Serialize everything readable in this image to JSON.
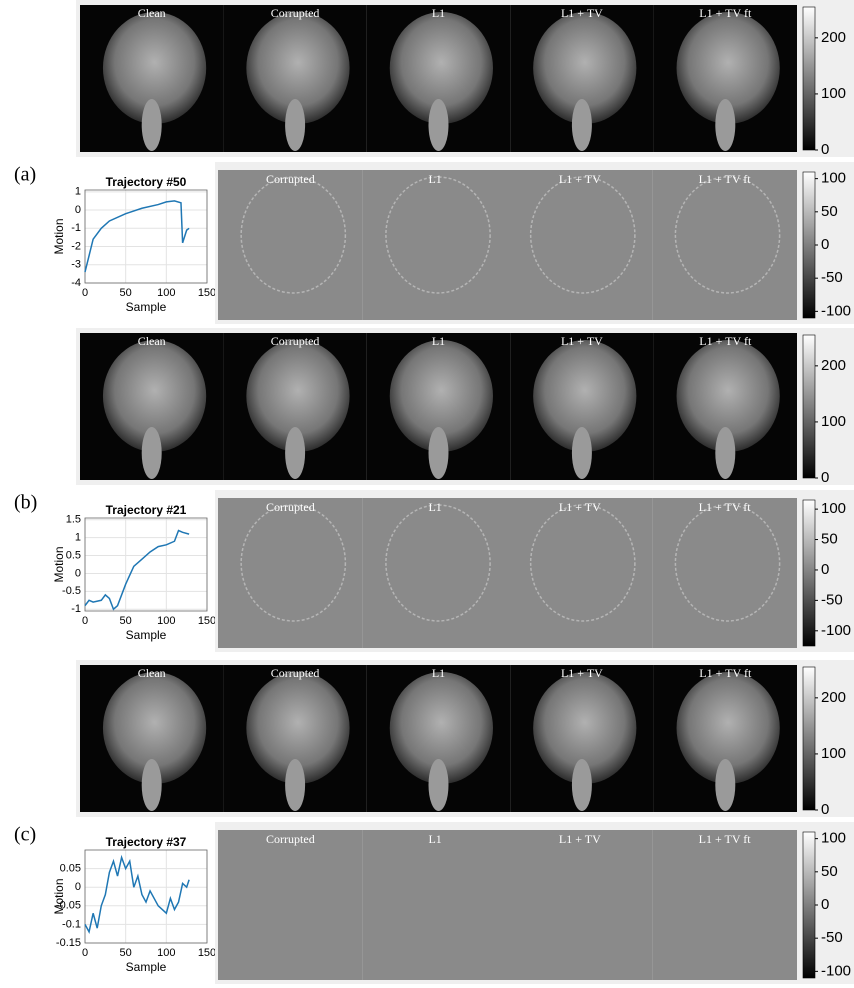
{
  "panels": [
    {
      "label": "(a)",
      "recon": {
        "labels": [
          "Clean",
          "Corrupted",
          "L1",
          "L1 + TV",
          "L1 + TV ft"
        ],
        "colorbar": {
          "lim": [
            0,
            255
          ],
          "ticks": [
            0,
            100,
            200
          ]
        }
      },
      "trajectory": {
        "type": "line",
        "title": "Trajectory #50",
        "x_label": "Sample",
        "y_label": "Motion",
        "color": "#1f77b4",
        "x": [
          0,
          5,
          10,
          20,
          30,
          50,
          70,
          90,
          100,
          110,
          118,
          120,
          125,
          128
        ],
        "values": [
          -3.4,
          -2.5,
          -1.6,
          -1.0,
          -0.6,
          -0.2,
          0.1,
          0.3,
          0.45,
          0.5,
          0.4,
          -1.8,
          -1.1,
          -1.0
        ],
        "xlim": [
          0,
          150
        ],
        "xticks": [
          0,
          50,
          100,
          150
        ],
        "ylim": [
          -4,
          1.1
        ],
        "yticks": [
          -4,
          -3,
          -2,
          -1,
          0,
          1
        ]
      },
      "diff": {
        "labels": [
          "Corrupted",
          "L1",
          "L1 + TV",
          "L1 + TV ft"
        ],
        "colorbar": {
          "lim": [
            -110,
            110
          ],
          "ticks": [
            -100,
            -50,
            0,
            50,
            100
          ]
        }
      }
    },
    {
      "label": "(b)",
      "recon": {
        "labels": [
          "Clean",
          "Corrupted",
          "L1",
          "L1 + TV",
          "L1 + TV ft"
        ],
        "colorbar": {
          "lim": [
            0,
            255
          ],
          "ticks": [
            0,
            100,
            200
          ]
        }
      },
      "trajectory": {
        "type": "line",
        "title": "Trajectory #21",
        "x_label": "Sample",
        "y_label": "Motion",
        "color": "#1f77b4",
        "x": [
          0,
          5,
          10,
          20,
          25,
          30,
          35,
          40,
          50,
          60,
          70,
          80,
          90,
          100,
          110,
          115,
          120,
          128
        ],
        "values": [
          -0.9,
          -0.75,
          -0.8,
          -0.75,
          -0.6,
          -0.7,
          -1.0,
          -0.9,
          -0.3,
          0.2,
          0.4,
          0.6,
          0.75,
          0.8,
          0.9,
          1.2,
          1.15,
          1.1
        ],
        "xlim": [
          0,
          150
        ],
        "xticks": [
          0,
          50,
          100,
          150
        ],
        "ylim": [
          -1.05,
          1.55
        ],
        "yticks": [
          -1,
          -0.5,
          0,
          0.5,
          1,
          1.5
        ]
      },
      "diff": {
        "labels": [
          "Corrupted",
          "L1",
          "L1 + TV",
          "L1 + TV ft"
        ],
        "colorbar": {
          "lim": [
            -125,
            115
          ],
          "ticks": [
            -100,
            -50,
            0,
            50,
            100
          ]
        }
      }
    },
    {
      "label": "(c)",
      "recon": {
        "labels": [
          "Clean",
          "Corrupted",
          "L1",
          "L1 + TV",
          "L1 + TV ft"
        ],
        "colorbar": {
          "lim": [
            0,
            255
          ],
          "ticks": [
            0,
            100,
            200
          ]
        }
      },
      "trajectory": {
        "type": "line",
        "title": "Trajectory #37",
        "x_label": "Sample",
        "y_label": "Motion",
        "color": "#1f77b4",
        "x": [
          0,
          5,
          10,
          15,
          20,
          25,
          30,
          35,
          40,
          45,
          50,
          55,
          60,
          65,
          70,
          75,
          80,
          90,
          100,
          105,
          110,
          115,
          120,
          125,
          128
        ],
        "values": [
          -0.1,
          -0.12,
          -0.07,
          -0.11,
          -0.05,
          -0.02,
          0.04,
          0.07,
          0.03,
          0.08,
          0.05,
          0.07,
          0.0,
          0.03,
          -0.02,
          -0.04,
          -0.01,
          -0.05,
          -0.07,
          -0.03,
          -0.06,
          -0.04,
          0.01,
          0.0,
          0.02
        ],
        "xlim": [
          0,
          150
        ],
        "xticks": [
          0,
          50,
          100,
          150
        ],
        "ylim": [
          -0.15,
          0.1
        ],
        "yticks": [
          -0.15,
          -0.1,
          -0.05,
          0,
          0.05
        ]
      },
      "diff": {
        "labels": [
          "Corrupted",
          "L1",
          "L1 + TV",
          "L1 + TV ft"
        ],
        "colorbar": {
          "lim": [
            -110,
            110
          ],
          "ticks": [
            -100,
            -50,
            0,
            50,
            100
          ]
        }
      }
    }
  ]
}
